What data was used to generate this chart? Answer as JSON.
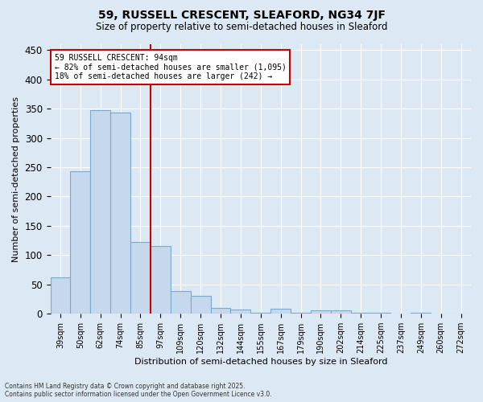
{
  "title_line1": "59, RUSSELL CRESCENT, SLEAFORD, NG34 7JF",
  "title_line2": "Size of property relative to semi-detached houses in Sleaford",
  "xlabel": "Distribution of semi-detached houses by size in Sleaford",
  "ylabel": "Number of semi-detached properties",
  "categories": [
    "39sqm",
    "50sqm",
    "62sqm",
    "74sqm",
    "85sqm",
    "97sqm",
    "109sqm",
    "120sqm",
    "132sqm",
    "144sqm",
    "155sqm",
    "167sqm",
    "179sqm",
    "190sqm",
    "202sqm",
    "214sqm",
    "225sqm",
    "237sqm",
    "249sqm",
    "260sqm",
    "272sqm"
  ],
  "values": [
    62,
    243,
    348,
    343,
    122,
    116,
    39,
    30,
    10,
    7,
    2,
    8,
    1,
    6,
    6,
    1,
    1,
    0,
    1,
    0,
    0
  ],
  "bar_color": "#c5d8ec",
  "bar_edge_color": "#7aaace",
  "vline_x_index": 5,
  "vline_color": "#cc0000",
  "annotation_title": "59 RUSSELL CRESCENT: 94sqm",
  "annotation_line1": "← 82% of semi-detached houses are smaller (1,095)",
  "annotation_line2": "18% of semi-detached houses are larger (242) →",
  "annotation_box_color": "#cc0000",
  "annotation_box_facecolor": "white",
  "ylim": [
    0,
    460
  ],
  "yticks": [
    0,
    50,
    100,
    150,
    200,
    250,
    300,
    350,
    400,
    450
  ],
  "footer_line1": "Contains HM Land Registry data © Crown copyright and database right 2025.",
  "footer_line2": "Contains public sector information licensed under the Open Government Licence v3.0.",
  "bg_color": "#dce9f5",
  "plot_bg_color": "#dce9f5",
  "grid_color": "white"
}
